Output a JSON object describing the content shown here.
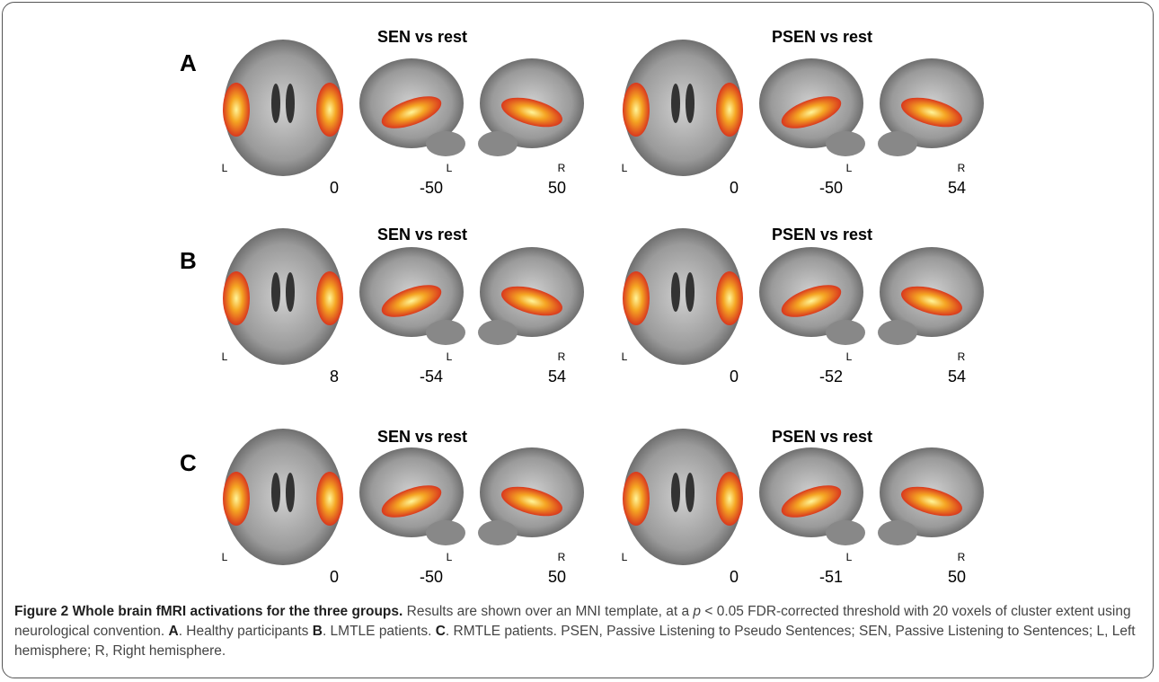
{
  "figure": {
    "panels": [
      {
        "letter": "A",
        "groups": [
          {
            "title": "SEN vs rest",
            "slices": [
              {
                "side": "L",
                "coord": 0
              },
              {
                "side": "L",
                "coord": -50
              },
              {
                "side": "R",
                "coord": 50
              }
            ]
          },
          {
            "title": "PSEN vs rest",
            "slices": [
              {
                "side": "L",
                "coord": 0
              },
              {
                "side": "L",
                "coord": -50
              },
              {
                "side": "R",
                "coord": 54
              }
            ]
          }
        ]
      },
      {
        "letter": "B",
        "groups": [
          {
            "title": "SEN vs rest",
            "slices": [
              {
                "side": "L",
                "coord": 8
              },
              {
                "side": "L",
                "coord": -54
              },
              {
                "side": "R",
                "coord": 54
              }
            ]
          },
          {
            "title": "PSEN vs rest",
            "slices": [
              {
                "side": "L",
                "coord": 0
              },
              {
                "side": "L",
                "coord": -52
              },
              {
                "side": "R",
                "coord": 54
              }
            ]
          }
        ]
      },
      {
        "letter": "C",
        "groups": [
          {
            "title": "SEN vs rest",
            "slices": [
              {
                "side": "L",
                "coord": 0
              },
              {
                "side": "L",
                "coord": -50
              },
              {
                "side": "R",
                "coord": 50
              }
            ]
          },
          {
            "title": "PSEN vs rest",
            "slices": [
              {
                "side": "L",
                "coord": 0
              },
              {
                "side": "L",
                "coord": -51
              },
              {
                "side": "R",
                "coord": 50
              }
            ]
          }
        ]
      }
    ]
  },
  "caption": {
    "title": "Figure 2 Whole brain fMRI activations for the three groups.",
    "text1": " Results are shown over an MNI template, at a ",
    "p": "p",
    "text2": " < 0.05 FDR-corrected threshold with 20 voxels of cluster extent using neurological convention. ",
    "a": "A",
    "text3": ". Healthy participants ",
    "b": "B",
    "text4": ". LMTLE patients. ",
    "c": "C",
    "text5": ". RMTLE patients. PSEN, Passive Listening to Pseudo Sentences; SEN, Passive Listening to Sentences; L, Left hemisphere; R, Right hemisphere."
  }
}
